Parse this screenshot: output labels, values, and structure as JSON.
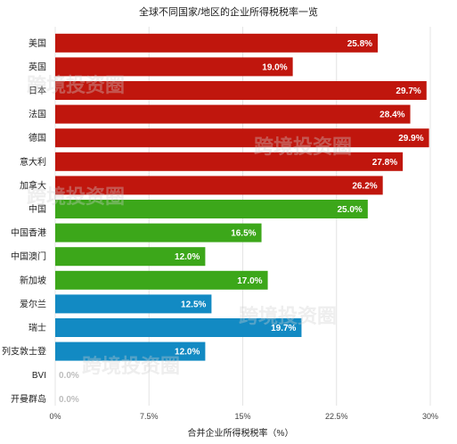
{
  "chart_data": {
    "type": "bar",
    "orientation": "horizontal",
    "title": "全球不同国家/地区的企业所得税税率一览",
    "xlabel": "合并企业所得税税率（%）",
    "xlim": [
      0,
      30
    ],
    "xticks": [
      0,
      7.5,
      15,
      22.5,
      30
    ],
    "xtick_labels": [
      "0%",
      "7.5%",
      "15%",
      "22.5%",
      "30%"
    ],
    "grid": "vertical",
    "categories": [
      "美国",
      "英国",
      "日本",
      "法国",
      "德国",
      "意大利",
      "加拿大",
      "中国",
      "中国香港",
      "中国澳门",
      "新加坡",
      "爱尔兰",
      "瑞士",
      "列支敦士登",
      "BVI",
      "开曼群岛"
    ],
    "values": [
      25.8,
      19.0,
      29.7,
      28.4,
      29.9,
      27.8,
      26.2,
      25.0,
      16.5,
      12.0,
      17.0,
      12.5,
      19.7,
      12.0,
      0.0,
      0.0
    ],
    "value_labels": [
      "25.8%",
      "19.0%",
      "29.7%",
      "28.4%",
      "29.9%",
      "27.8%",
      "26.2%",
      "25.0%",
      "16.5%",
      "12.0%",
      "17.0%",
      "12.5%",
      "19.7%",
      "12.0%",
      "0.0%",
      "0.0%"
    ],
    "bar_colors": [
      "#c0160d",
      "#c0160d",
      "#c0160d",
      "#c0160d",
      "#c0160d",
      "#c0160d",
      "#c0160d",
      "#3ca71a",
      "#3ca71a",
      "#3ca71a",
      "#3ca71a",
      "#128ac3",
      "#128ac3",
      "#128ac3",
      "#128ac3",
      "#128ac3"
    ]
  },
  "watermark": "跨境投资圈"
}
